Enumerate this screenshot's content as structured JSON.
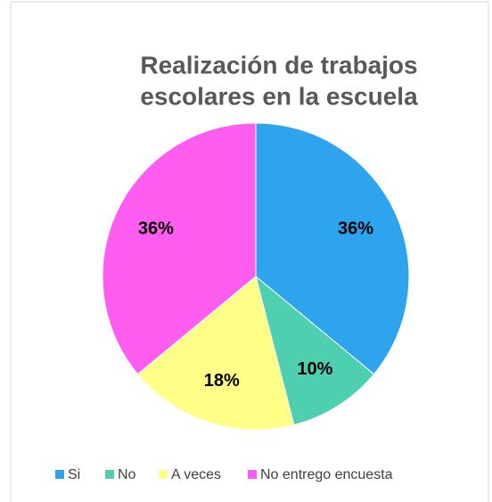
{
  "chart_data": {
    "type": "pie",
    "title": [
      "Realización de trabajos",
      "escolares en la escuela"
    ],
    "categories": [
      "Si",
      "No",
      "A veces",
      "No entrego encuesta"
    ],
    "values": [
      36,
      10,
      18,
      36
    ],
    "value_labels": [
      "36%",
      "10%",
      "18%",
      "36%"
    ],
    "colors": [
      "#2ea3ee",
      "#4dcfb0",
      "#ffff88",
      "#ff5cf0"
    ],
    "legend": "bottom"
  }
}
